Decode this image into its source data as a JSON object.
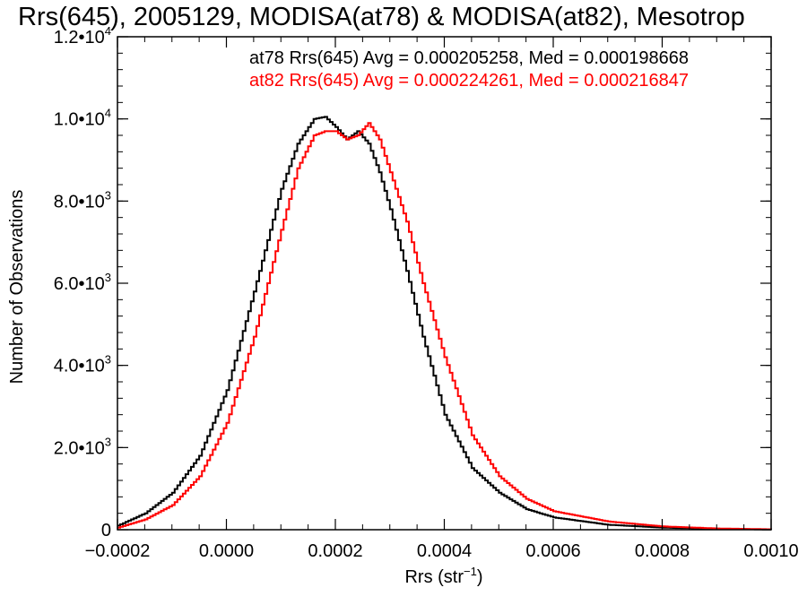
{
  "chart_data": {
    "type": "line",
    "title": "Rrs(645), 2005129, MODISA(at78) & MODISA(at82), Mesotrop",
    "xlabel_main": "Rrs (str",
    "xlabel_sup": "−1",
    "xlabel_end": ")",
    "ylabel": "Number of Observations",
    "xlim": [
      -0.0002,
      0.001
    ],
    "ylim": [
      0,
      12000
    ],
    "x_ticks": [
      {
        "value": -0.0002,
        "label": "−0.0002"
      },
      {
        "value": 0.0,
        "label": "0.0000"
      },
      {
        "value": 0.0002,
        "label": "0.0002"
      },
      {
        "value": 0.0004,
        "label": "0.0004"
      },
      {
        "value": 0.0006,
        "label": "0.0006"
      },
      {
        "value": 0.0008,
        "label": "0.0008"
      },
      {
        "value": 0.001,
        "label": "0.0010"
      }
    ],
    "y_ticks": [
      {
        "value": 0,
        "mant": "0",
        "exp": ""
      },
      {
        "value": 2000,
        "mant": "2.0•10",
        "exp": "3"
      },
      {
        "value": 4000,
        "mant": "4.0•10",
        "exp": "3"
      },
      {
        "value": 6000,
        "mant": "6.0•10",
        "exp": "3"
      },
      {
        "value": 8000,
        "mant": "8.0•10",
        "exp": "3"
      },
      {
        "value": 10000,
        "mant": "1.0•10",
        "exp": "4"
      },
      {
        "value": 12000,
        "mant": "1.2•10",
        "exp": "4"
      }
    ],
    "legend": [
      {
        "text": "at78 Rrs(645) Avg = 0.000205258, Med = 0.000198668",
        "color": "#000000"
      },
      {
        "text": "at82 Rrs(645) Avg = 0.000224261, Med = 0.000216847",
        "color": "#ff0000"
      }
    ],
    "series": [
      {
        "color": "#000000",
        "points": [
          [
            -0.0002,
            100
          ],
          [
            -0.00015,
            400
          ],
          [
            -0.0001,
            900
          ],
          [
            -5e-05,
            1800
          ],
          [
            0.0,
            3400
          ],
          [
            5e-05,
            5800
          ],
          [
            0.0001,
            8300
          ],
          [
            0.00013,
            9400
          ],
          [
            0.00016,
            10000
          ],
          [
            0.00018,
            10050
          ],
          [
            0.0002,
            9800
          ],
          [
            0.00022,
            9500
          ],
          [
            0.00024,
            9700
          ],
          [
            0.00026,
            9400
          ],
          [
            0.00028,
            8700
          ],
          [
            0.0003,
            7800
          ],
          [
            0.00033,
            6300
          ],
          [
            0.00036,
            4700
          ],
          [
            0.0004,
            2800
          ],
          [
            0.00045,
            1500
          ],
          [
            0.0005,
            900
          ],
          [
            0.00055,
            500
          ],
          [
            0.0006,
            300
          ],
          [
            0.0007,
            120
          ],
          [
            0.0008,
            50
          ],
          [
            0.0009,
            20
          ],
          [
            0.001,
            5
          ]
        ]
      },
      {
        "color": "#ff0000",
        "points": [
          [
            -0.0002,
            50
          ],
          [
            -0.00015,
            250
          ],
          [
            -0.0001,
            600
          ],
          [
            -5e-05,
            1300
          ],
          [
            0.0,
            2600
          ],
          [
            5e-05,
            4700
          ],
          [
            0.0001,
            7300
          ],
          [
            0.00013,
            8800
          ],
          [
            0.00016,
            9600
          ],
          [
            0.00018,
            9700
          ],
          [
            0.0002,
            9700
          ],
          [
            0.00022,
            9500
          ],
          [
            0.00024,
            9600
          ],
          [
            0.00026,
            9900
          ],
          [
            0.00028,
            9500
          ],
          [
            0.0003,
            8700
          ],
          [
            0.00033,
            7500
          ],
          [
            0.00036,
            6000
          ],
          [
            0.0004,
            4200
          ],
          [
            0.00045,
            2300
          ],
          [
            0.0005,
            1300
          ],
          [
            0.00055,
            750
          ],
          [
            0.0006,
            450
          ],
          [
            0.0007,
            200
          ],
          [
            0.0008,
            80
          ],
          [
            0.0009,
            30
          ],
          [
            0.001,
            10
          ]
        ]
      }
    ]
  }
}
